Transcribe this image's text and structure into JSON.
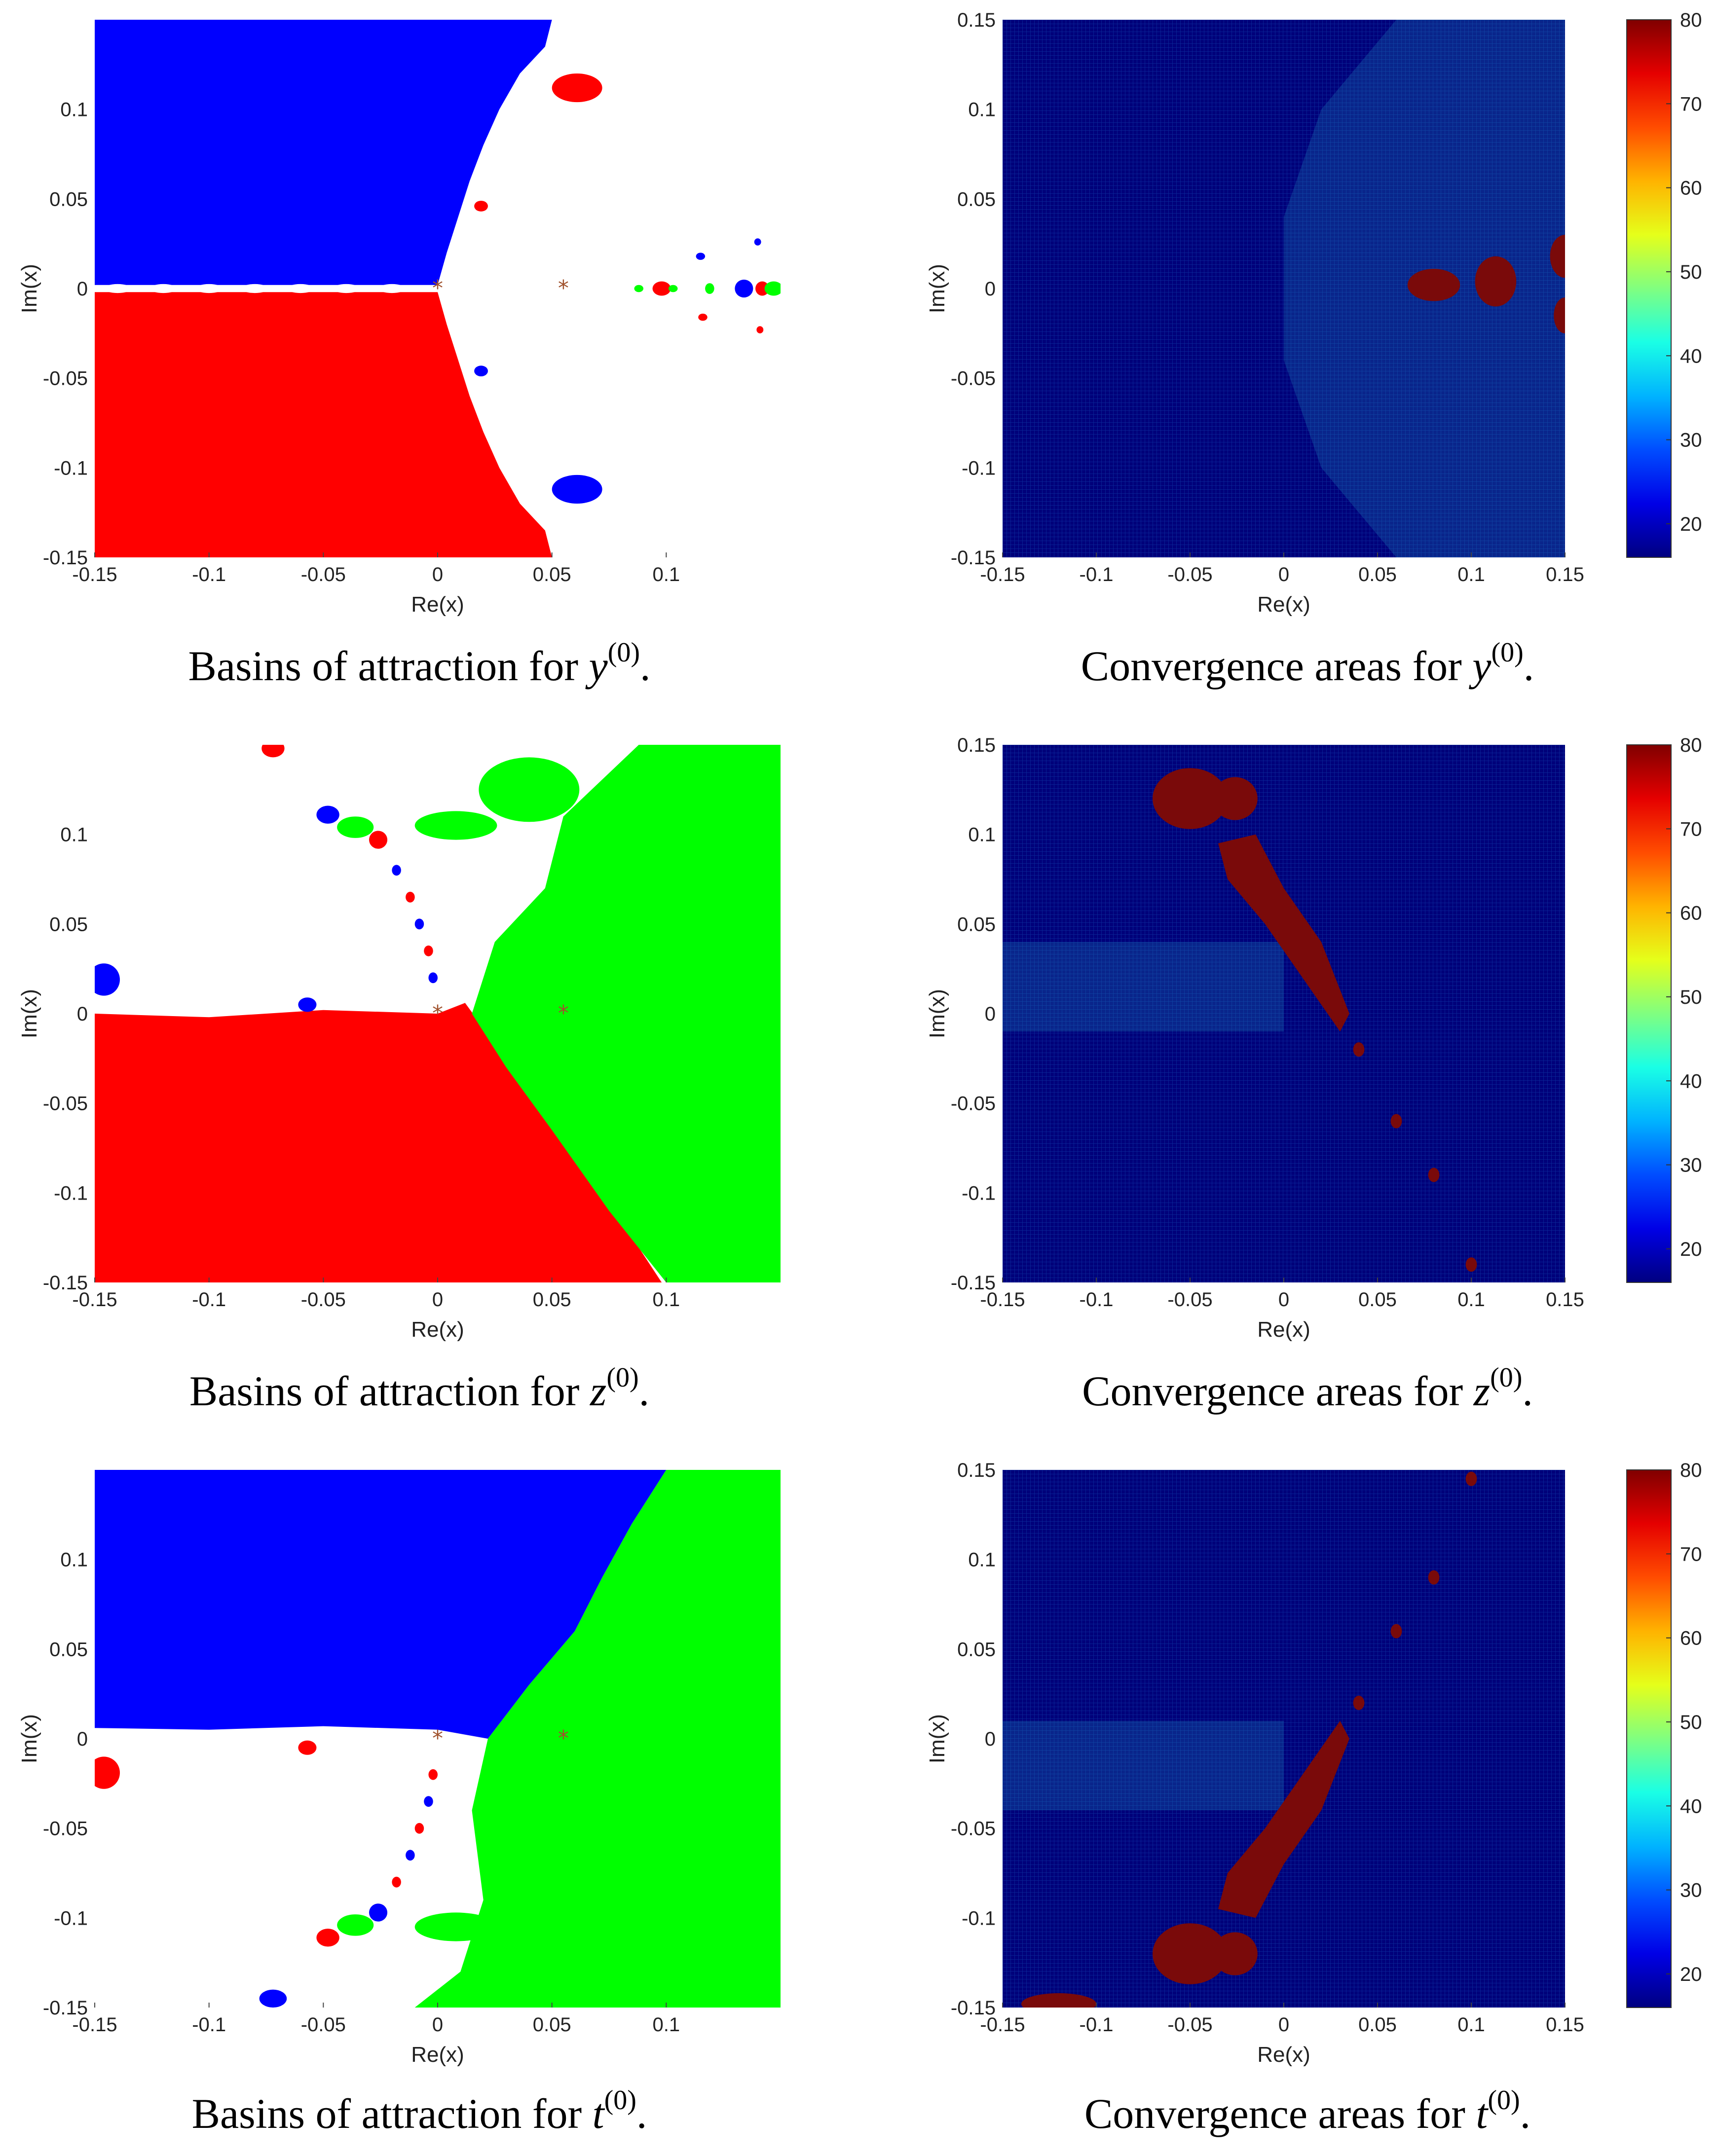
{
  "colors": {
    "basin_blue": "#0000ff",
    "basin_red": "#ff0000",
    "basin_green": "#00ff00",
    "heat_dark": "#00007a",
    "heat_feature": "#7a0a0a",
    "root_marker": "#a0522d"
  },
  "chart_data": [
    {
      "type": "heatmap",
      "title": "",
      "caption": {
        "text": "Basins of attraction for ",
        "var": "y",
        "sup": "(0)",
        "end": "."
      },
      "xlabel": "Re(x)",
      "ylabel": "Im(x)",
      "xlim": [
        -0.15,
        0.15
      ],
      "ylim": [
        -0.15,
        0.15
      ],
      "xticks": [
        "-0.15",
        "-0.1",
        "-0.05",
        "0",
        "0.05",
        "0.1"
      ],
      "yticks": [
        "0.1",
        "0.05",
        "0",
        "-0.05",
        "-0.1",
        "-0.15"
      ],
      "roots_marked": [
        [
          0,
          0
        ],
        [
          0.055,
          0
        ]
      ],
      "regions": [
        {
          "color": "blue",
          "description": "upper-left basin"
        },
        {
          "color": "red",
          "description": "lower-left basin"
        },
        {
          "color": "white",
          "description": "non-convergent region on the right"
        }
      ]
    },
    {
      "type": "heatmap",
      "title": "",
      "caption": {
        "text": "Convergence areas for ",
        "var": "y",
        "sup": "(0)",
        "end": "."
      },
      "xlabel": "Re(x)",
      "ylabel": "Im(x)",
      "xlim": [
        -0.15,
        0.15
      ],
      "ylim": [
        -0.15,
        0.15
      ],
      "xticks": [
        "-0.15",
        "-0.1",
        "-0.05",
        "0",
        "0.05",
        "0.1",
        "0.15"
      ],
      "yticks": [
        "0.15",
        "0.1",
        "0.05",
        "0",
        "-0.05",
        "-0.1",
        "-0.15"
      ],
      "colorbar": {
        "min": 16,
        "max": 80,
        "ticks": [
          "80",
          "70",
          "60",
          "50",
          "40",
          "30",
          "20"
        ]
      }
    },
    {
      "type": "heatmap",
      "title": "",
      "caption": {
        "text": "Basins of attraction for ",
        "var": "z",
        "sup": "(0)",
        "end": "."
      },
      "xlabel": "Re(x)",
      "ylabel": "Im(x)",
      "xlim": [
        -0.15,
        0.15
      ],
      "ylim": [
        -0.15,
        0.15
      ],
      "xticks": [
        "-0.15",
        "-0.1",
        "-0.05",
        "0",
        "0.05",
        "0.1"
      ],
      "yticks": [
        "0.1",
        "0.05",
        "0",
        "-0.05",
        "-0.1",
        "-0.15"
      ],
      "roots_marked": [
        [
          0,
          0
        ],
        [
          0.055,
          0
        ]
      ],
      "regions": [
        {
          "color": "red",
          "description": "lower-left basin"
        },
        {
          "color": "green",
          "description": "right basin"
        },
        {
          "color": "white",
          "description": "non-convergent region upper-left"
        }
      ]
    },
    {
      "type": "heatmap",
      "title": "",
      "caption": {
        "text": "Convergence areas for ",
        "var": "z",
        "sup": "(0)",
        "end": "."
      },
      "xlabel": "Re(x)",
      "ylabel": "Im(x)",
      "xlim": [
        -0.15,
        0.15
      ],
      "ylim": [
        -0.15,
        0.15
      ],
      "xticks": [
        "-0.15",
        "-0.1",
        "-0.05",
        "0",
        "0.05",
        "0.1",
        "0.15"
      ],
      "yticks": [
        "0.15",
        "0.1",
        "0.05",
        "0",
        "-0.05",
        "-0.1",
        "-0.15"
      ],
      "colorbar": {
        "min": 16,
        "max": 80,
        "ticks": [
          "80",
          "70",
          "60",
          "50",
          "40",
          "30",
          "20"
        ]
      }
    },
    {
      "type": "heatmap",
      "title": "",
      "caption": {
        "text": "Basins of attraction for ",
        "var": "t",
        "sup": "(0)",
        "end": "."
      },
      "xlabel": "Re(x)",
      "ylabel": "Im(x)",
      "xlim": [
        -0.15,
        0.15
      ],
      "ylim": [
        -0.15,
        0.15
      ],
      "xticks": [
        "-0.15",
        "-0.1",
        "-0.05",
        "0",
        "0.05",
        "0.1"
      ],
      "yticks": [
        "0.1",
        "0.05",
        "0",
        "-0.05",
        "-0.1",
        "-0.15"
      ],
      "roots_marked": [
        [
          0,
          0
        ],
        [
          0.055,
          0
        ]
      ],
      "regions": [
        {
          "color": "blue",
          "description": "upper-left basin"
        },
        {
          "color": "green",
          "description": "right basin"
        },
        {
          "color": "white",
          "description": "non-convergent region lower-left"
        }
      ]
    },
    {
      "type": "heatmap",
      "title": "",
      "caption": {
        "text": "Convergence areas for ",
        "var": "t",
        "sup": "(0)",
        "end": "."
      },
      "xlabel": "Re(x)",
      "ylabel": "Im(x)",
      "xlim": [
        -0.15,
        0.15
      ],
      "ylim": [
        -0.15,
        0.15
      ],
      "xticks": [
        "-0.15",
        "-0.1",
        "-0.05",
        "0",
        "0.05",
        "0.1",
        "0.15"
      ],
      "yticks": [
        "0.15",
        "0.1",
        "0.05",
        "0",
        "-0.05",
        "-0.1",
        "-0.15"
      ],
      "colorbar": {
        "min": 16,
        "max": 80,
        "ticks": [
          "80",
          "70",
          "60",
          "50",
          "40",
          "30",
          "20"
        ]
      }
    }
  ]
}
